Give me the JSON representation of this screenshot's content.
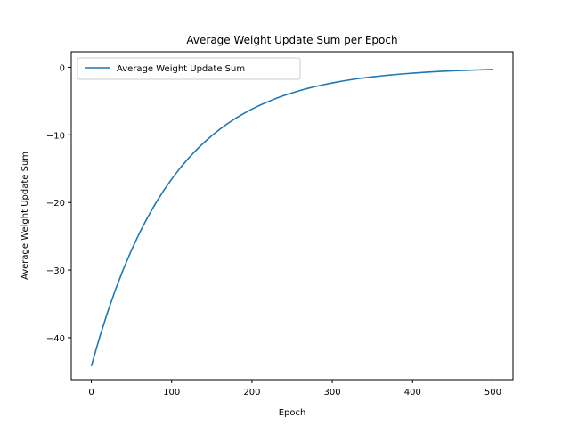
{
  "chart_data": {
    "type": "line",
    "title": "Average Weight Update Sum per Epoch",
    "xlabel": "Epoch",
    "ylabel": "Average Weight Update Sum",
    "xlim": [
      -25,
      525
    ],
    "ylim": [
      -46.2,
      2.3
    ],
    "xticks": [
      0,
      100,
      200,
      300,
      400,
      500
    ],
    "xtick_labels": [
      "0",
      "100",
      "200",
      "300",
      "400",
      "500"
    ],
    "yticks": [
      0,
      -10,
      -20,
      -30,
      -40
    ],
    "ytick_labels": [
      "0",
      "−10",
      "−20",
      "−30",
      "−40"
    ],
    "grid": false,
    "legend_position": "top-left",
    "series": [
      {
        "name": "Average Weight Update Sum",
        "color": "#1f77b4",
        "x": [
          0,
          10,
          20,
          30,
          40,
          50,
          60,
          70,
          80,
          90,
          100,
          110,
          120,
          130,
          140,
          150,
          160,
          170,
          180,
          190,
          200,
          210,
          220,
          230,
          240,
          250,
          260,
          270,
          280,
          290,
          300,
          310,
          320,
          330,
          340,
          350,
          360,
          370,
          380,
          390,
          400,
          410,
          420,
          430,
          440,
          450,
          460,
          470,
          480,
          490,
          500
        ],
        "y": [
          -44.2,
          -40.06,
          -36.31,
          -32.91,
          -29.83,
          -27.04,
          -24.51,
          -22.21,
          -20.13,
          -18.25,
          -16.54,
          -14.99,
          -13.59,
          -12.32,
          -11.16,
          -10.12,
          -9.17,
          -8.31,
          -7.53,
          -6.83,
          -6.19,
          -5.61,
          -5.09,
          -4.61,
          -4.18,
          -3.79,
          -3.43,
          -3.11,
          -2.82,
          -2.56,
          -2.32,
          -2.1,
          -1.9,
          -1.72,
          -1.56,
          -1.42,
          -1.29,
          -1.17,
          -1.06,
          -0.96,
          -0.87,
          -0.79,
          -0.71,
          -0.64,
          -0.58,
          -0.53,
          -0.48,
          -0.44,
          -0.4,
          -0.36,
          -0.33
        ]
      }
    ]
  }
}
